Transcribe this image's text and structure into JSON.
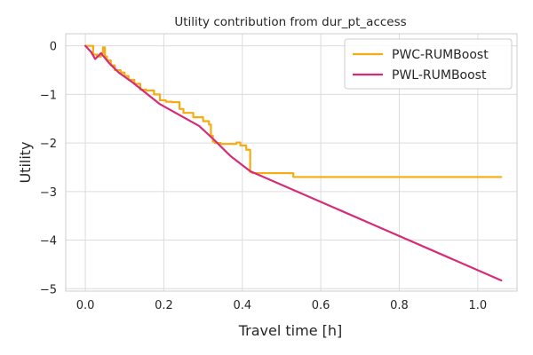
{
  "chart_data": {
    "type": "line",
    "title": "Utility contribution from dur_pt_access",
    "xlabel": "Travel time [h]",
    "ylabel": "Utility",
    "xlim": [
      -0.05,
      1.1
    ],
    "ylim": [
      -5.05,
      0.25
    ],
    "x_ticks": [
      0.0,
      0.2,
      0.4,
      0.6,
      0.8,
      1.0
    ],
    "x_tick_labels": [
      "0.0",
      "0.2",
      "0.4",
      "0.6",
      "0.8",
      "1.0"
    ],
    "y_ticks": [
      0,
      -1,
      -2,
      -3,
      -4,
      -5
    ],
    "y_tick_labels": [
      "0",
      "−1",
      "−2",
      "−3",
      "−4",
      "−5"
    ],
    "grid": true,
    "legend_position": "top-right",
    "series": [
      {
        "name": "PWC-RUMBoost",
        "color": "#f5ac12",
        "step": true,
        "x": [
          0.0,
          0.02,
          0.03,
          0.04,
          0.045,
          0.05,
          0.055,
          0.065,
          0.075,
          0.09,
          0.1,
          0.11,
          0.125,
          0.14,
          0.155,
          0.175,
          0.19,
          0.205,
          0.22,
          0.24,
          0.25,
          0.275,
          0.3,
          0.315,
          0.32,
          0.325,
          0.33,
          0.345,
          0.385,
          0.395,
          0.41,
          0.42,
          0.425,
          0.53,
          1.06
        ],
        "y": [
          0.0,
          -0.18,
          -0.22,
          -0.15,
          -0.03,
          -0.22,
          -0.3,
          -0.4,
          -0.5,
          -0.55,
          -0.62,
          -0.7,
          -0.78,
          -0.9,
          -0.92,
          -1.0,
          -1.12,
          -1.15,
          -1.16,
          -1.3,
          -1.38,
          -1.47,
          -1.55,
          -1.62,
          -1.85,
          -1.97,
          -2.0,
          -2.02,
          -1.99,
          -2.05,
          -2.14,
          -2.6,
          -2.62,
          -2.7,
          -2.7
        ]
      },
      {
        "name": "PWL-RUMBoost",
        "color": "#d62c78",
        "step": false,
        "x": [
          0.0,
          0.015,
          0.025,
          0.04,
          0.06,
          0.085,
          0.12,
          0.19,
          0.29,
          0.33,
          0.37,
          0.42,
          1.06
        ],
        "y": [
          0.0,
          -0.13,
          -0.27,
          -0.15,
          -0.35,
          -0.55,
          -0.75,
          -1.2,
          -1.65,
          -1.95,
          -2.27,
          -2.58,
          -4.83
        ]
      }
    ]
  }
}
